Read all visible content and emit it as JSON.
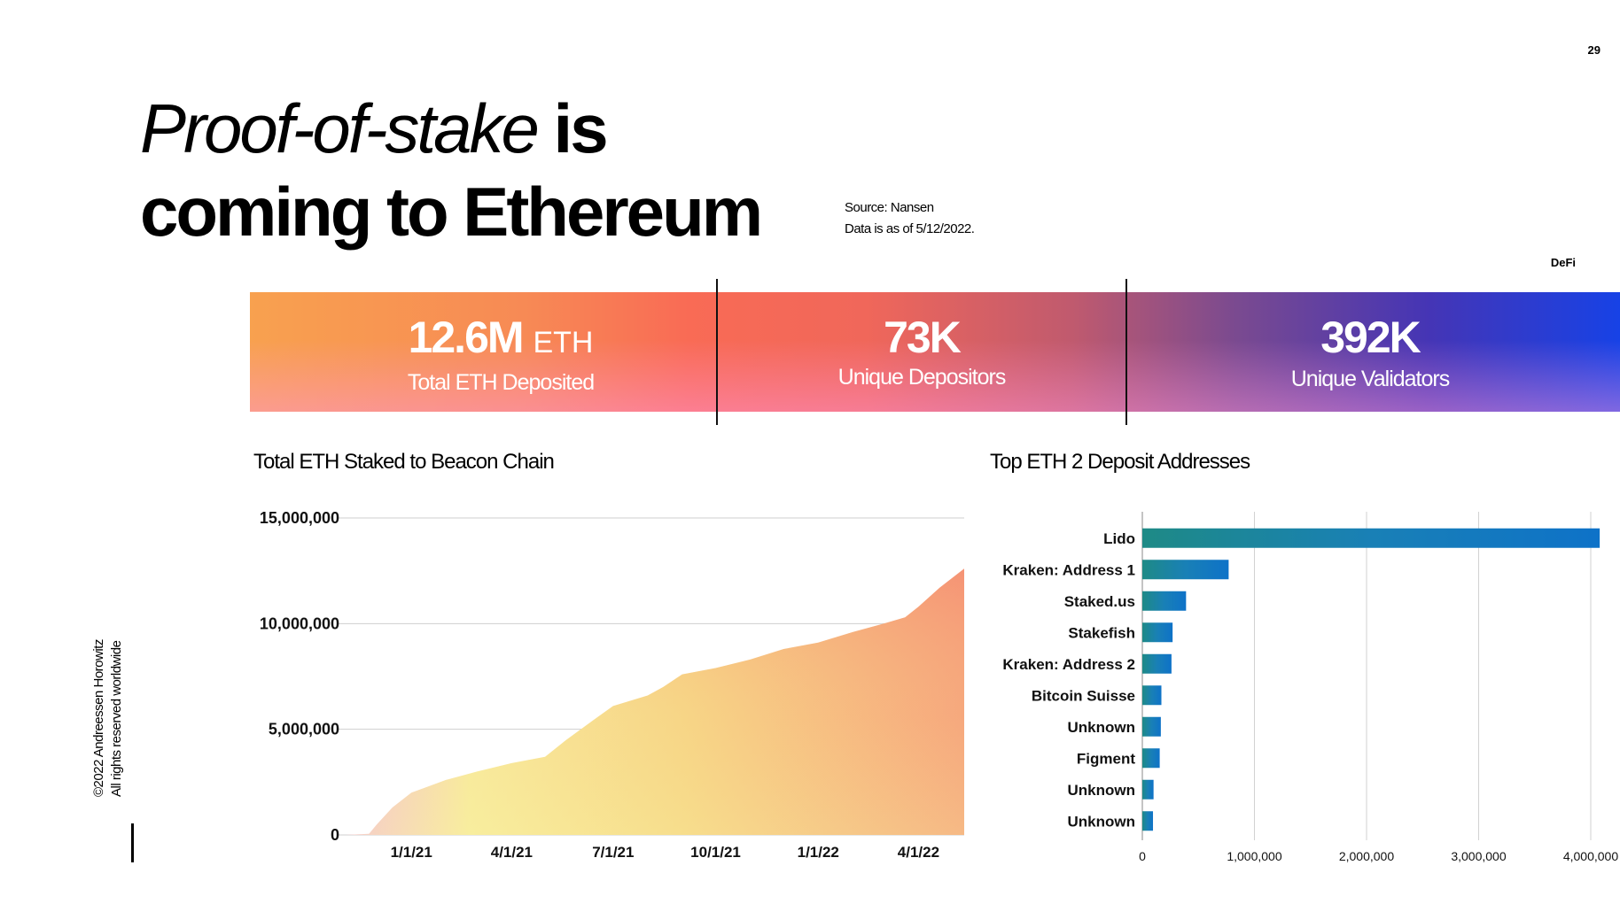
{
  "page_number": "29",
  "section_label": "DeFi",
  "title": {
    "italic": "Proof-of-stake",
    "bold1": "is",
    "bold2": "coming to Ethereum"
  },
  "source": {
    "line1": "Source: Nansen",
    "line2": "Data is as of 5/12/2022."
  },
  "stats": [
    {
      "value": "12.6M",
      "unit": "ETH",
      "label": "Total ETH Deposited"
    },
    {
      "value": "73K",
      "unit": "",
      "label": "Unique Depositors"
    },
    {
      "value": "392K",
      "unit": "",
      "label": "Unique Validators"
    }
  ],
  "copyright": {
    "line1": "©2022 Andreessen Horowitz",
    "line2": "All rights reserved worldwide"
  },
  "chart_data": [
    {
      "type": "area",
      "title": "Total ETH Staked to Beacon Chain",
      "xlabel": "",
      "ylabel": "",
      "ylim": [
        0,
        15000000
      ],
      "yticks": [
        "0",
        "5,000,000",
        "10,000,000",
        "15,000,000"
      ],
      "xticks": [
        "1/1/21",
        "4/1/21",
        "7/1/21",
        "10/1/21",
        "1/1/22",
        "4/1/22"
      ],
      "grid": true,
      "x": [
        "11/3/20",
        "11/24/20",
        "12/1/20",
        "12/15/20",
        "1/1/21",
        "2/1/21",
        "3/1/21",
        "4/1/21",
        "5/1/21",
        "5/20/21",
        "6/15/21",
        "7/1/21",
        "8/1/21",
        "8/15/21",
        "9/1/21",
        "10/1/21",
        "11/1/21",
        "12/1/21",
        "1/1/22",
        "2/1/22",
        "3/1/22",
        "3/20/22",
        "4/1/22",
        "4/20/22",
        "5/12/22"
      ],
      "values": [
        0,
        50000,
        500000,
        1300000,
        2000000,
        2600000,
        3000000,
        3400000,
        3700000,
        4500000,
        5500000,
        6100000,
        6600000,
        7000000,
        7600000,
        7900000,
        8300000,
        8800000,
        9100000,
        9600000,
        10000000,
        10300000,
        10800000,
        11700000,
        12600000
      ]
    },
    {
      "type": "bar",
      "orientation": "horizontal",
      "title": "Top ETH 2 Deposit Addresses",
      "xlim": [
        0,
        4000000
      ],
      "xticks": [
        "0",
        "1,000,000",
        "2,000,000",
        "3,000,000",
        "4,000,000"
      ],
      "categories": [
        "Lido",
        "Kraken: Address 1",
        "Staked.us",
        "Stakefish",
        "Kraken: Address 2",
        "Bitcoin Suisse",
        "Unknown",
        "Figment",
        "Unknown",
        "Unknown"
      ],
      "values": [
        4080000,
        770000,
        390000,
        270000,
        260000,
        170000,
        165000,
        155000,
        100000,
        95000
      ]
    }
  ]
}
